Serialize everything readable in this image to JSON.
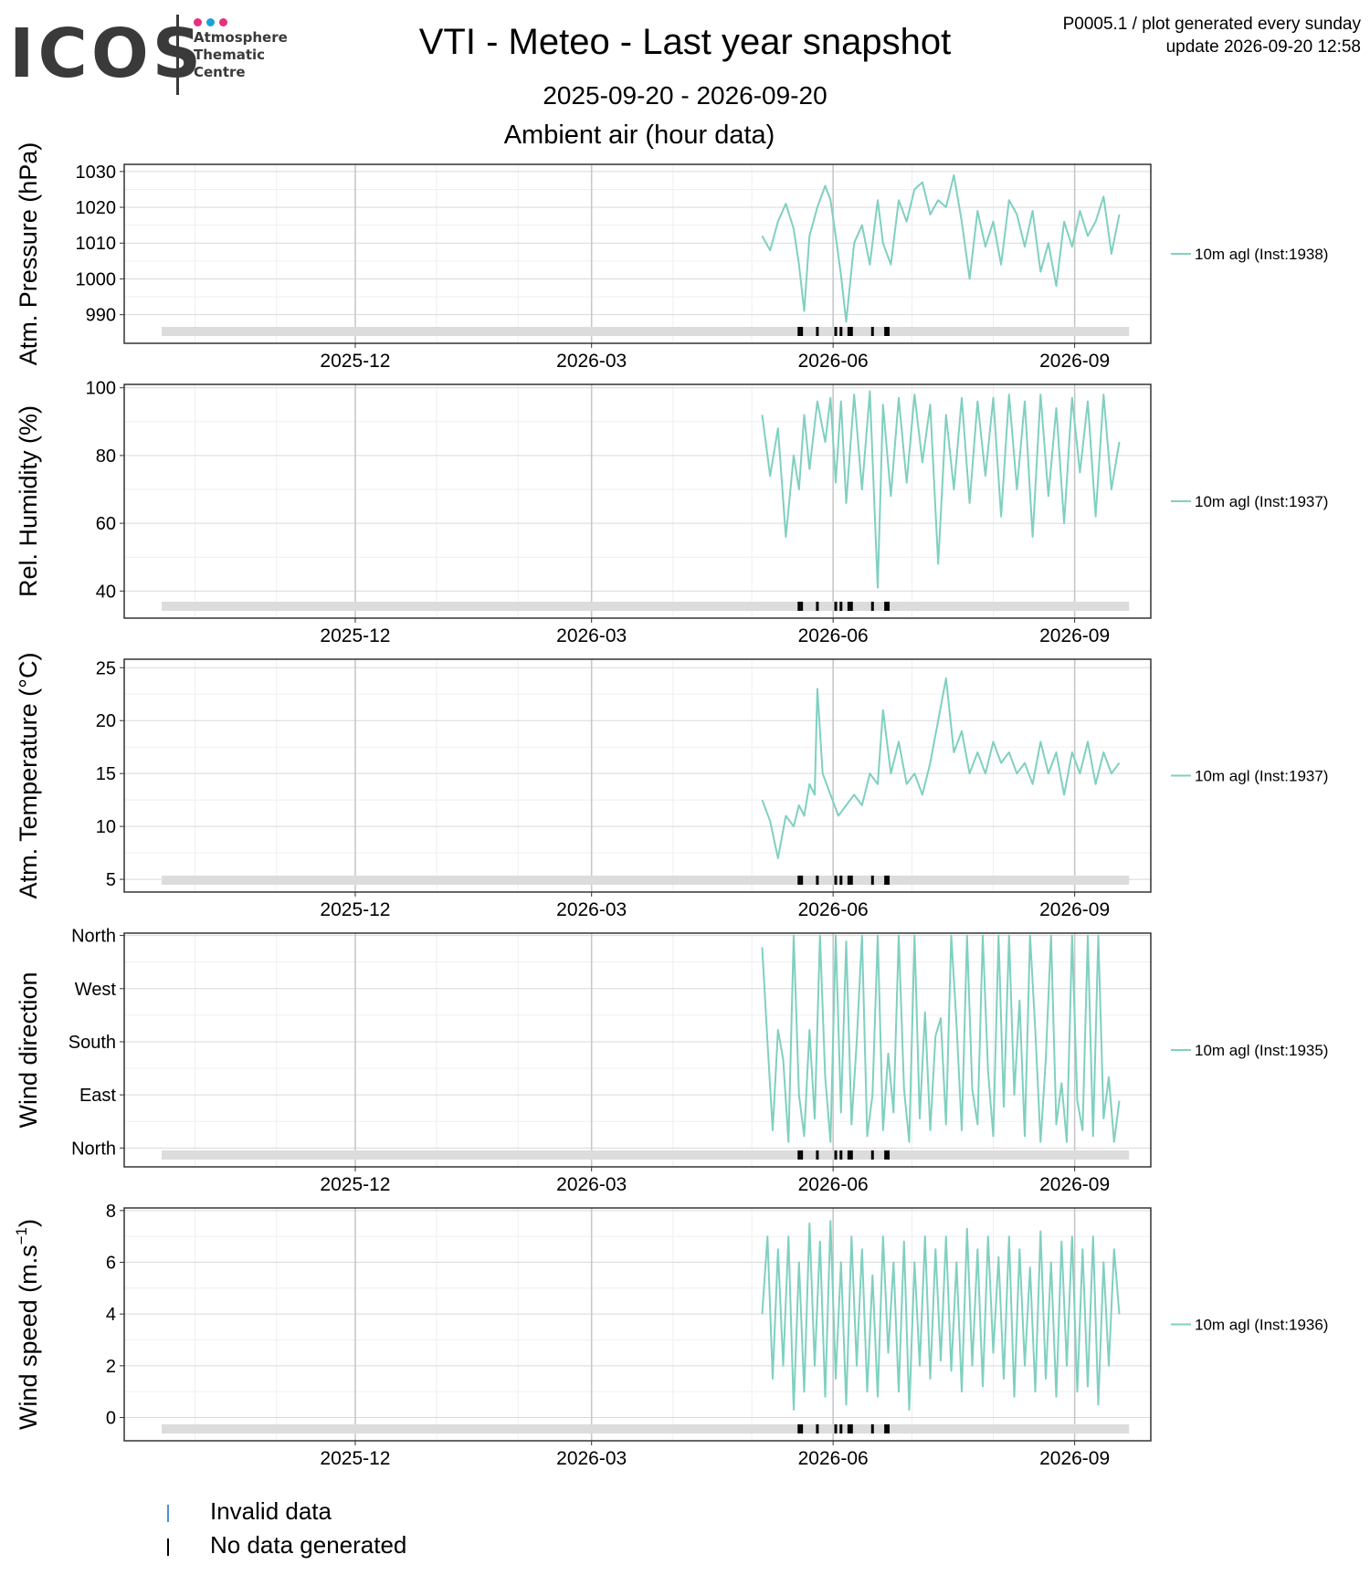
{
  "logo": {
    "word": "ICOS",
    "sub": "Atmosphere\nThematic\nCentre",
    "dot_colors": [
      "#e6317c",
      "#1aa3d9",
      "#e6317c"
    ]
  },
  "title": "VTI - Meteo - Last year snapshot",
  "subtitle": "2025-09-20 - 2026-09-20",
  "section": "Ambient air (hour data)",
  "meta": {
    "line1": "P0005.1 / plot generated every sunday",
    "line2": "update  2026-09-20 12:58"
  },
  "colors": {
    "series": "#7fd0c0",
    "invalid": "#4a90d9",
    "nodata": "#000000",
    "band": "#dcdcdc",
    "grid_major": "#d9d9d9",
    "grid_minor": "#efefef"
  },
  "shared_x": {
    "range": [
      "2025-09-20",
      "2026-09-20"
    ],
    "tick_labels": [
      "2025-12",
      "2026-03",
      "2026-06",
      "2026-09"
    ],
    "tick_dates": [
      "2025-12-01",
      "2026-03-01",
      "2026-06-01",
      "2026-09-01"
    ],
    "data_start": "2026-05-05",
    "data_end": "2026-09-18",
    "nodata_marks": [
      "2026-05-19",
      "2026-05-20",
      "2026-05-26",
      "2026-06-02",
      "2026-06-04",
      "2026-06-07",
      "2026-06-08",
      "2026-06-16",
      "2026-06-21",
      "2026-06-22"
    ]
  },
  "chart_data": [
    {
      "type": "line",
      "ylabel": "Atm. Pressure (hPa)",
      "legend": "10m agl (Inst:1938)",
      "y_tick_values": [
        990,
        1000,
        1010,
        1020,
        1030
      ],
      "y_tick_labels": [
        "990",
        "1000",
        "1010",
        "1020",
        "1030"
      ],
      "ylim": [
        982,
        1032
      ],
      "series": [
        {
          "name": "10m agl (Inst:1938)",
          "x": [
            "2026-05-05",
            "2026-05-08",
            "2026-05-11",
            "2026-05-14",
            "2026-05-17",
            "2026-05-19",
            "2026-05-21",
            "2026-05-23",
            "2026-05-26",
            "2026-05-29",
            "2026-05-31",
            "2026-06-02",
            "2026-06-04",
            "2026-06-06",
            "2026-06-09",
            "2026-06-12",
            "2026-06-15",
            "2026-06-18",
            "2026-06-20",
            "2026-06-23",
            "2026-06-26",
            "2026-06-29",
            "2026-07-02",
            "2026-07-05",
            "2026-07-08",
            "2026-07-11",
            "2026-07-14",
            "2026-07-17",
            "2026-07-20",
            "2026-07-23",
            "2026-07-26",
            "2026-07-29",
            "2026-08-01",
            "2026-08-04",
            "2026-08-07",
            "2026-08-10",
            "2026-08-13",
            "2026-08-16",
            "2026-08-19",
            "2026-08-22",
            "2026-08-25",
            "2026-08-28",
            "2026-08-31",
            "2026-09-03",
            "2026-09-06",
            "2026-09-09",
            "2026-09-12",
            "2026-09-15",
            "2026-09-18"
          ],
          "y": [
            1012,
            1008,
            1016,
            1021,
            1014,
            1004,
            991,
            1012,
            1020,
            1026,
            1022,
            1012,
            1001,
            988,
            1010,
            1015,
            1004,
            1022,
            1010,
            1004,
            1022,
            1016,
            1025,
            1027,
            1018,
            1022,
            1020,
            1029,
            1016,
            1000,
            1019,
            1009,
            1016,
            1004,
            1022,
            1018,
            1009,
            1019,
            1002,
            1010,
            998,
            1016,
            1009,
            1019,
            1012,
            1016,
            1023,
            1007,
            1018
          ]
        }
      ]
    },
    {
      "type": "line",
      "ylabel": "Rel. Humidity (%)",
      "legend": "10m agl (Inst:1937)",
      "y_tick_values": [
        40,
        60,
        80,
        100
      ],
      "y_tick_labels": [
        "40",
        "60",
        "80",
        "100"
      ],
      "ylim": [
        32,
        101
      ],
      "series": [
        {
          "name": "10m agl (Inst:1937)",
          "x": [
            "2026-05-05",
            "2026-05-08",
            "2026-05-11",
            "2026-05-14",
            "2026-05-17",
            "2026-05-19",
            "2026-05-21",
            "2026-05-23",
            "2026-05-26",
            "2026-05-29",
            "2026-05-31",
            "2026-06-02",
            "2026-06-04",
            "2026-06-06",
            "2026-06-09",
            "2026-06-12",
            "2026-06-15",
            "2026-06-18",
            "2026-06-20",
            "2026-06-23",
            "2026-06-26",
            "2026-06-29",
            "2026-07-02",
            "2026-07-05",
            "2026-07-08",
            "2026-07-11",
            "2026-07-14",
            "2026-07-17",
            "2026-07-20",
            "2026-07-23",
            "2026-07-26",
            "2026-07-29",
            "2026-08-01",
            "2026-08-04",
            "2026-08-07",
            "2026-08-10",
            "2026-08-13",
            "2026-08-16",
            "2026-08-19",
            "2026-08-22",
            "2026-08-25",
            "2026-08-28",
            "2026-08-31",
            "2026-09-03",
            "2026-09-06",
            "2026-09-09",
            "2026-09-12",
            "2026-09-15",
            "2026-09-18"
          ],
          "y": [
            92,
            74,
            88,
            56,
            80,
            70,
            92,
            76,
            96,
            84,
            97,
            72,
            96,
            66,
            98,
            70,
            99,
            41,
            95,
            68,
            97,
            72,
            98,
            78,
            95,
            48,
            92,
            70,
            97,
            66,
            96,
            74,
            97,
            62,
            98,
            70,
            96,
            56,
            98,
            68,
            94,
            60,
            97,
            75,
            96,
            62,
            98,
            70,
            84
          ]
        }
      ]
    },
    {
      "type": "line",
      "ylabel": "Atm. Temperature (°C)",
      "legend": "10m agl (Inst:1937)",
      "y_tick_values": [
        5,
        10,
        15,
        20,
        25
      ],
      "y_tick_labels": [
        "5",
        "10",
        "15",
        "20",
        "25"
      ],
      "ylim": [
        3.8,
        25.8
      ],
      "series": [
        {
          "name": "10m agl (Inst:1937)",
          "x": [
            "2026-05-05",
            "2026-05-08",
            "2026-05-11",
            "2026-05-14",
            "2026-05-17",
            "2026-05-19",
            "2026-05-21",
            "2026-05-23",
            "2026-05-25",
            "2026-05-26",
            "2026-05-28",
            "2026-05-31",
            "2026-06-03",
            "2026-06-06",
            "2026-06-09",
            "2026-06-12",
            "2026-06-15",
            "2026-06-18",
            "2026-06-20",
            "2026-06-23",
            "2026-06-26",
            "2026-06-29",
            "2026-07-02",
            "2026-07-05",
            "2026-07-08",
            "2026-07-11",
            "2026-07-14",
            "2026-07-17",
            "2026-07-20",
            "2026-07-23",
            "2026-07-26",
            "2026-07-29",
            "2026-08-01",
            "2026-08-04",
            "2026-08-07",
            "2026-08-10",
            "2026-08-13",
            "2026-08-16",
            "2026-08-19",
            "2026-08-22",
            "2026-08-25",
            "2026-08-28",
            "2026-08-31",
            "2026-09-03",
            "2026-09-06",
            "2026-09-09",
            "2026-09-12",
            "2026-09-15",
            "2026-09-18"
          ],
          "y": [
            12.5,
            10.5,
            7,
            11,
            10,
            12,
            11,
            14,
            13,
            23,
            15,
            13,
            11,
            12,
            13,
            12,
            15,
            14,
            21,
            15,
            18,
            14,
            15,
            13,
            16,
            20,
            24,
            17,
            19,
            15,
            17,
            15,
            18,
            16,
            17,
            15,
            16,
            14,
            18,
            15,
            17,
            13,
            17,
            15,
            18,
            14,
            17,
            15,
            16
          ]
        }
      ]
    },
    {
      "type": "line",
      "ylabel": "Wind direction",
      "legend": "10m agl (Inst:1935)",
      "y_tick_values": [
        0,
        90,
        180,
        270,
        360
      ],
      "y_tick_labels": [
        "North",
        "East",
        "South",
        "West",
        "North"
      ],
      "ylim": [
        -32,
        364
      ],
      "series": [
        {
          "name": "10m agl (Inst:1935)",
          "x": [
            "2026-05-05",
            "2026-05-07",
            "2026-05-09",
            "2026-05-11",
            "2026-05-13",
            "2026-05-15",
            "2026-05-17",
            "2026-05-19",
            "2026-05-21",
            "2026-05-23",
            "2026-05-25",
            "2026-05-27",
            "2026-05-29",
            "2026-05-31",
            "2026-06-02",
            "2026-06-04",
            "2026-06-06",
            "2026-06-08",
            "2026-06-10",
            "2026-06-12",
            "2026-06-14",
            "2026-06-16",
            "2026-06-18",
            "2026-06-20",
            "2026-06-22",
            "2026-06-24",
            "2026-06-26",
            "2026-06-28",
            "2026-06-30",
            "2026-07-02",
            "2026-07-04",
            "2026-07-06",
            "2026-07-08",
            "2026-07-10",
            "2026-07-12",
            "2026-07-14",
            "2026-07-16",
            "2026-07-18",
            "2026-07-20",
            "2026-07-22",
            "2026-07-24",
            "2026-07-26",
            "2026-07-28",
            "2026-07-30",
            "2026-08-01",
            "2026-08-03",
            "2026-08-05",
            "2026-08-07",
            "2026-08-09",
            "2026-08-11",
            "2026-08-13",
            "2026-08-15",
            "2026-08-17",
            "2026-08-19",
            "2026-08-21",
            "2026-08-23",
            "2026-08-25",
            "2026-08-27",
            "2026-08-29",
            "2026-08-31",
            "2026-09-02",
            "2026-09-04",
            "2026-09-06",
            "2026-09-08",
            "2026-09-10",
            "2026-09-12",
            "2026-09-14",
            "2026-09-16",
            "2026-09-18"
          ],
          "y": [
            340,
            180,
            30,
            200,
            150,
            10,
            360,
            90,
            20,
            200,
            50,
            360,
            120,
            10,
            360,
            60,
            350,
            40,
            180,
            360,
            20,
            90,
            360,
            30,
            160,
            60,
            360,
            100,
            10,
            360,
            50,
            230,
            30,
            190,
            220,
            40,
            360,
            210,
            30,
            360,
            100,
            40,
            360,
            130,
            20,
            360,
            70,
            360,
            90,
            250,
            20,
            360,
            200,
            10,
            150,
            360,
            40,
            110,
            10,
            360,
            80,
            30,
            360,
            20,
            360,
            50,
            120,
            10,
            80
          ]
        }
      ]
    },
    {
      "type": "line",
      "ylabel": "Wind speed (m.s",
      "ylabel_sup": "−1",
      "ylabel_close": ")",
      "legend": "10m agl (Inst:1936)",
      "y_tick_values": [
        0,
        2,
        4,
        6,
        8
      ],
      "y_tick_labels": [
        "0",
        "2",
        "4",
        "6",
        "8"
      ],
      "ylim": [
        -0.9,
        8.1
      ],
      "series": [
        {
          "name": "10m agl (Inst:1936)",
          "x": [
            "2026-05-05",
            "2026-05-07",
            "2026-05-09",
            "2026-05-11",
            "2026-05-13",
            "2026-05-15",
            "2026-05-17",
            "2026-05-19",
            "2026-05-21",
            "2026-05-23",
            "2026-05-25",
            "2026-05-27",
            "2026-05-29",
            "2026-05-31",
            "2026-06-02",
            "2026-06-04",
            "2026-06-06",
            "2026-06-08",
            "2026-06-10",
            "2026-06-12",
            "2026-06-14",
            "2026-06-16",
            "2026-06-18",
            "2026-06-20",
            "2026-06-22",
            "2026-06-24",
            "2026-06-26",
            "2026-06-28",
            "2026-06-30",
            "2026-07-02",
            "2026-07-04",
            "2026-07-06",
            "2026-07-08",
            "2026-07-10",
            "2026-07-12",
            "2026-07-14",
            "2026-07-16",
            "2026-07-18",
            "2026-07-20",
            "2026-07-22",
            "2026-07-24",
            "2026-07-26",
            "2026-07-28",
            "2026-07-30",
            "2026-08-01",
            "2026-08-03",
            "2026-08-05",
            "2026-08-07",
            "2026-08-09",
            "2026-08-11",
            "2026-08-13",
            "2026-08-15",
            "2026-08-17",
            "2026-08-19",
            "2026-08-21",
            "2026-08-23",
            "2026-08-25",
            "2026-08-27",
            "2026-08-29",
            "2026-08-31",
            "2026-09-02",
            "2026-09-04",
            "2026-09-06",
            "2026-09-08",
            "2026-09-10",
            "2026-09-12",
            "2026-09-14",
            "2026-09-16",
            "2026-09-18"
          ],
          "y": [
            4,
            7,
            1.5,
            6.5,
            2,
            7,
            0.3,
            6,
            1,
            7.5,
            2,
            6.8,
            0.8,
            7.6,
            1.5,
            6,
            0.5,
            7,
            2,
            6.5,
            1,
            5.5,
            0.8,
            7,
            2.5,
            6,
            1,
            6.8,
            0.3,
            6,
            2,
            7,
            1.5,
            6.5,
            2.2,
            7,
            1.8,
            6,
            1,
            7.3,
            2,
            6.5,
            1.2,
            7,
            2.5,
            6.2,
            1.5,
            7,
            0.8,
            6.5,
            2,
            5.8,
            1,
            7.2,
            1.5,
            6,
            0.8,
            6.8,
            2,
            7,
            1,
            6.5,
            1.2,
            7,
            0.5,
            6,
            2,
            6.5,
            4
          ]
        }
      ]
    }
  ],
  "bottom_legend": {
    "invalid": "Invalid data",
    "nodata": "No data generated"
  }
}
